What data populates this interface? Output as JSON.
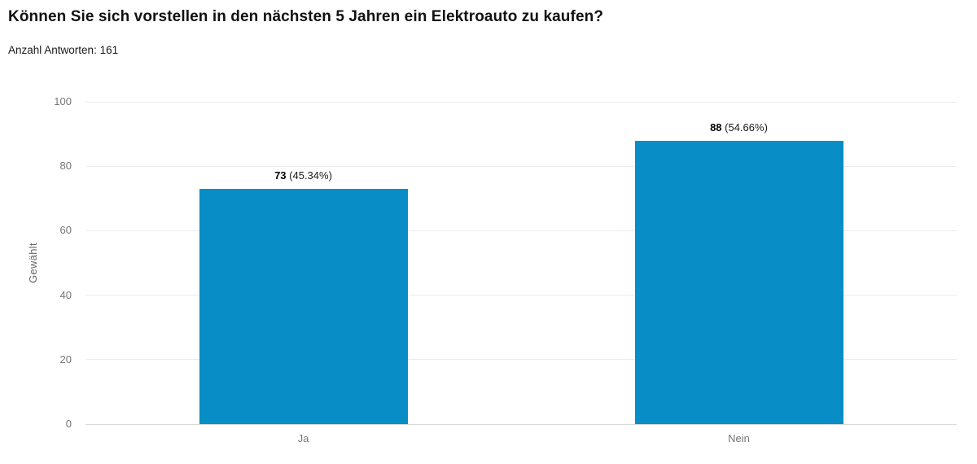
{
  "chart_data": {
    "type": "bar",
    "title": "Können Sie sich vorstellen in den nächsten 5 Jahren ein Elektroauto zu kaufen?",
    "subtitle": "Anzahl Antworten: 161",
    "categories": [
      "Ja",
      "Nein"
    ],
    "values": [
      73,
      88
    ],
    "value_labels": [
      {
        "count": "73",
        "pct": "(45.34%)"
      },
      {
        "count": "88",
        "pct": "(54.66%)"
      }
    ],
    "total_responses": 161,
    "xlabel": "",
    "ylabel": "Gewählt",
    "ylim": [
      0,
      100
    ],
    "yticks": [
      0,
      20,
      40,
      60,
      80,
      100
    ],
    "grid": true,
    "legend": "none",
    "bar_color": "#088dc7"
  }
}
